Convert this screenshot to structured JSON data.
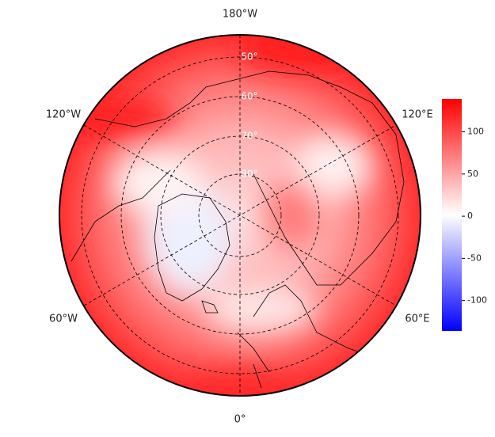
{
  "map": {
    "longitude_labels": [
      "180°W",
      "120°E",
      "60°E",
      "0°",
      "60°W",
      "120°W"
    ],
    "latitude_labels": [
      "50°",
      "60°",
      "70°",
      "80°"
    ],
    "colorbar": {
      "range": [
        -136,
        139
      ],
      "ticks": [
        100,
        50,
        0,
        -50,
        -100
      ]
    }
  }
}
